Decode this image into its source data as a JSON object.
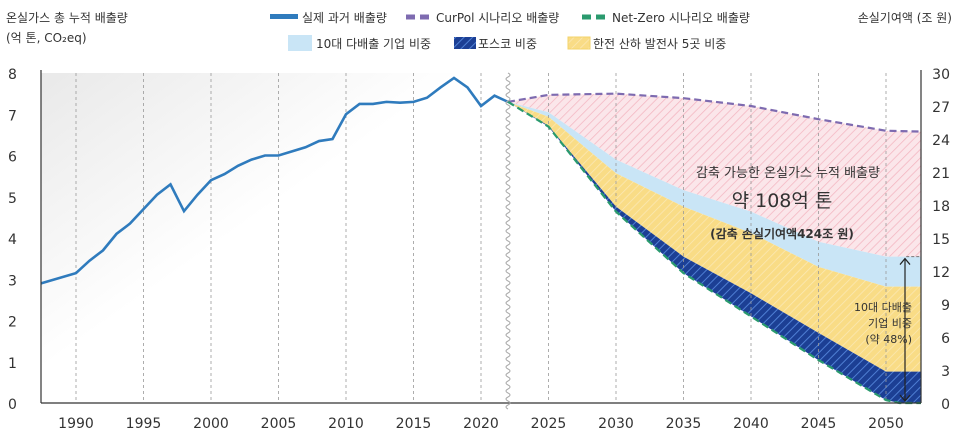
{
  "chart_data": {
    "type": "area",
    "ylabel_left": [
      "온실가스 총 누적 배출량",
      "(억 톤, CO₂eq)"
    ],
    "ylabel_right": "손실기여액 (조 원)",
    "ylim_left": [
      0,
      8
    ],
    "ylim_right": [
      0,
      30
    ],
    "yticks_left": [
      "0",
      "1",
      "2",
      "3",
      "4",
      "5",
      "6",
      "7",
      "8"
    ],
    "yticks_right": [
      "0",
      "3",
      "6",
      "9",
      "12",
      "15",
      "18",
      "21",
      "24",
      "27",
      "30"
    ],
    "xticks": [
      "1990",
      "1995",
      "2000",
      "2005",
      "2010",
      "2015",
      "2020",
      "2025",
      "2030",
      "2035",
      "2040",
      "2045",
      "2050"
    ],
    "grid": "vertical dashed",
    "legend_position": "top",
    "legend": [
      {
        "label": "실제 과거 배출량",
        "style": "solid-line",
        "color": "#2f7bbd"
      },
      {
        "label": "CurPol 시나리오 배출량",
        "style": "dashed-line",
        "color": "#7e6bb0"
      },
      {
        "label": "Net-Zero 시나리오 배출량",
        "style": "dashed-line",
        "color": "#2a9a6e"
      },
      {
        "label": "10대 다배출 기업 비중",
        "style": "fill",
        "color": "#c9e5f6"
      },
      {
        "label": "포스코 비중",
        "style": "hatch",
        "color": "#1f47a0"
      },
      {
        "label": "한전 산하 발전사 5곳 비중",
        "style": "hatch",
        "color": "#f7d67a"
      }
    ],
    "series": [
      {
        "name": "실제 과거 배출량",
        "x": [
          1987,
          1990,
          1991,
          1992,
          1993,
          1994,
          1995,
          1996,
          1997,
          1998,
          1999,
          2000,
          2001,
          2002,
          2003,
          2004,
          2005,
          2006,
          2007,
          2008,
          2009,
          2010,
          2011,
          2012,
          2013,
          2014,
          2015,
          2016,
          2017,
          2018,
          2019,
          2020,
          2021,
          2022
        ],
        "values": [
          2.9,
          3.15,
          3.45,
          3.7,
          4.1,
          4.35,
          4.7,
          5.05,
          5.3,
          4.65,
          5.05,
          5.4,
          5.55,
          5.75,
          5.9,
          6.0,
          6.0,
          6.1,
          6.2,
          6.35,
          6.4,
          7.0,
          7.25,
          7.25,
          7.3,
          7.28,
          7.3,
          7.4,
          7.65,
          7.88,
          7.65,
          7.2,
          7.45,
          7.3
        ]
      },
      {
        "name": "CurPol 시나리오 배출량",
        "x": [
          2022,
          2025,
          2030,
          2035,
          2040,
          2045,
          2050,
          2053
        ],
        "values": [
          7.3,
          7.47,
          7.5,
          7.39,
          7.2,
          6.88,
          6.6,
          6.58
        ]
      },
      {
        "name": "Net-Zero 시나리오 배출량",
        "x": [
          2022,
          2025,
          2030,
          2035,
          2040,
          2045,
          2050,
          2051,
          2053
        ],
        "values": [
          7.3,
          6.7,
          4.64,
          3.15,
          2.1,
          1.04,
          0.07,
          0,
          0
        ]
      },
      {
        "name": "10대 다배출 기업 비중",
        "x": [
          2022,
          2025,
          2030,
          2035,
          2040,
          2045,
          2050,
          2053
        ],
        "values": [
          7.3,
          7.05,
          5.9,
          5.16,
          4.64,
          3.91,
          3.55,
          3.55
        ]
      },
      {
        "name": "한전 산하 발전사 5곳 비중",
        "x": [
          2022,
          2025,
          2030,
          2035,
          2040,
          2045,
          2050,
          2053
        ],
        "values": [
          7.3,
          6.94,
          5.57,
          4.76,
          4.12,
          3.3,
          2.82,
          2.82
        ]
      },
      {
        "name": "포스코 비중",
        "x": [
          2022,
          2025,
          2030,
          2035,
          2040,
          2045,
          2050,
          2053
        ],
        "values": [
          7.3,
          6.72,
          4.76,
          3.55,
          2.66,
          1.7,
          0.76,
          0.76
        ]
      }
    ],
    "annotations": {
      "main_title": "감축 가능한 온실가스 누적 배출량",
      "main_value": "약 108억 톤",
      "main_sub": "(감축 손실기여액424조 원)",
      "share_lines": [
        "10대 다배출",
        "기업 비중",
        "(약 48%)"
      ]
    }
  }
}
